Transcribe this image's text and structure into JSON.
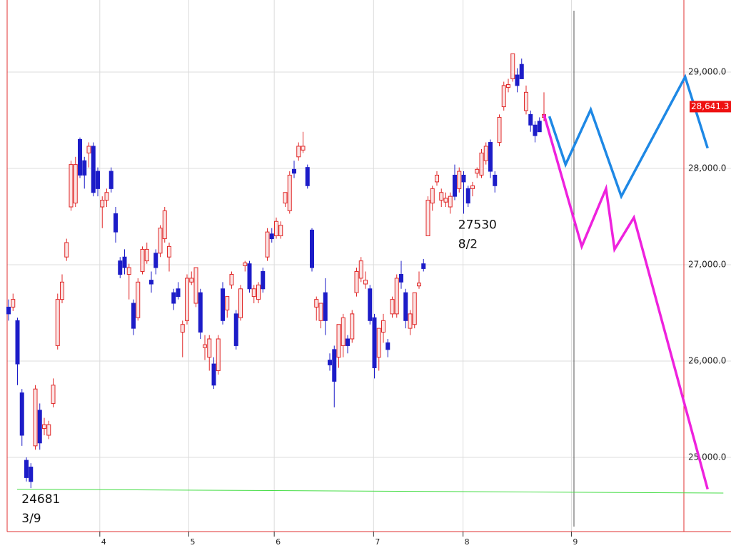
{
  "chart_data": {
    "type": "candlestick",
    "ylim": [
      24230,
      29748
    ],
    "xlim": [
      -0.4,
      162.2
    ],
    "yticks": [
      {
        "value": 25000,
        "label": "25,000.0"
      },
      {
        "value": 26000,
        "label": "26,000.0"
      },
      {
        "value": 27000,
        "label": "27,000.0"
      },
      {
        "value": 28000,
        "label": "28,000.0"
      },
      {
        "value": 29000,
        "label": "29,000.0"
      }
    ],
    "xticks": [
      {
        "value": 21.8,
        "label": "4"
      },
      {
        "value": 41.6,
        "label": "5"
      },
      {
        "value": 60.6,
        "label": "6"
      },
      {
        "value": 82.7,
        "label": "7"
      },
      {
        "value": 102.6,
        "label": "8"
      },
      {
        "value": 126.7,
        "label": "9"
      }
    ],
    "grid": true,
    "up_color": "#e02828",
    "down_color": "#1c1cc8",
    "candles": [
      [
        26560,
        26640,
        26420,
        26490
      ],
      [
        26560,
        26700,
        26520,
        26640
      ],
      [
        26420,
        26450,
        25750,
        25970
      ],
      [
        25670,
        25710,
        25120,
        25230
      ],
      [
        24970,
        25000,
        24750,
        24790
      ],
      [
        24900,
        24940,
        24681,
        24750
      ],
      [
        25120,
        25750,
        25080,
        25710
      ],
      [
        25490,
        25560,
        25080,
        25150
      ],
      [
        25300,
        25410,
        25230,
        25340
      ],
      [
        25230,
        25380,
        25190,
        25340
      ],
      [
        25560,
        25820,
        25520,
        25750
      ],
      [
        26160,
        26700,
        26120,
        26640
      ],
      [
        26640,
        26900,
        26600,
        26820
      ],
      [
        27080,
        27270,
        27040,
        27230
      ],
      [
        27600,
        28080,
        27560,
        28040
      ],
      [
        27640,
        28120,
        27600,
        28040
      ],
      [
        28300,
        28320,
        27900,
        27930
      ],
      [
        28080,
        28120,
        27790,
        27930
      ],
      [
        28160,
        28270,
        28010,
        28230
      ],
      [
        28230,
        28270,
        27710,
        27750
      ],
      [
        27970,
        28010,
        27710,
        27790
      ],
      [
        27600,
        27710,
        27380,
        27670
      ],
      [
        27670,
        27790,
        27600,
        27750
      ],
      [
        27970,
        28010,
        27750,
        27790
      ],
      [
        27530,
        27600,
        27230,
        27340
      ],
      [
        27040,
        27080,
        26860,
        26900
      ],
      [
        27080,
        27160,
        26900,
        26970
      ],
      [
        26900,
        27010,
        26640,
        26970
      ],
      [
        26600,
        26640,
        26270,
        26340
      ],
      [
        26450,
        26860,
        26420,
        26820
      ],
      [
        26930,
        27190,
        26900,
        27160
      ],
      [
        27040,
        27230,
        27010,
        27160
      ],
      [
        26840,
        26930,
        26710,
        26800
      ],
      [
        27120,
        27160,
        26900,
        26970
      ],
      [
        27120,
        27410,
        27080,
        27380
      ],
      [
        27270,
        27600,
        27230,
        27560
      ],
      [
        27080,
        27230,
        26930,
        27190
      ],
      [
        26710,
        26750,
        26530,
        26600
      ],
      [
        26750,
        26820,
        26640,
        26670
      ],
      [
        26300,
        26420,
        26040,
        26380
      ],
      [
        26420,
        26900,
        26380,
        26860
      ],
      [
        26820,
        26930,
        26790,
        26860
      ],
      [
        26600,
        26970,
        26560,
        26970
      ],
      [
        26710,
        26750,
        26230,
        26300
      ],
      [
        26140,
        26270,
        26010,
        26170
      ],
      [
        26040,
        26270,
        25900,
        26230
      ],
      [
        25970,
        26040,
        25710,
        25750
      ],
      [
        25900,
        26270,
        25860,
        26230
      ],
      [
        26750,
        26820,
        26380,
        26420
      ],
      [
        26530,
        26670,
        26450,
        26670
      ],
      [
        26790,
        26930,
        26750,
        26900
      ],
      [
        26490,
        26530,
        26120,
        26160
      ],
      [
        26450,
        26790,
        26420,
        26750
      ],
      [
        26990,
        27040,
        26930,
        27020
      ],
      [
        27010,
        27040,
        26710,
        26750
      ],
      [
        26670,
        26790,
        26600,
        26750
      ],
      [
        26640,
        26820,
        26600,
        26790
      ],
      [
        26930,
        26970,
        26710,
        26750
      ],
      [
        27080,
        27380,
        27040,
        27340
      ],
      [
        27320,
        27380,
        27230,
        27270
      ],
      [
        27300,
        27490,
        27270,
        27450
      ],
      [
        27300,
        27450,
        27270,
        27410
      ],
      [
        27640,
        27750,
        27600,
        27750
      ],
      [
        27560,
        27970,
        27530,
        27930
      ],
      [
        27990,
        28080,
        27900,
        27950
      ],
      [
        28120,
        28270,
        28080,
        28230
      ],
      [
        28190,
        28380,
        28160,
        28230
      ],
      [
        28010,
        28040,
        27790,
        27820
      ],
      [
        27360,
        27380,
        26930,
        26970
      ],
      [
        26560,
        26670,
        26420,
        26640
      ],
      [
        26420,
        26600,
        26340,
        26600
      ],
      [
        26710,
        26860,
        26270,
        26420
      ],
      [
        26010,
        26080,
        25900,
        25960
      ],
      [
        26120,
        26160,
        25520,
        25790
      ],
      [
        26040,
        26380,
        25930,
        26380
      ],
      [
        26160,
        26490,
        26040,
        26450
      ],
      [
        26230,
        26270,
        26080,
        26160
      ],
      [
        26230,
        26530,
        26190,
        26490
      ],
      [
        26710,
        26970,
        26670,
        26930
      ],
      [
        26860,
        27080,
        26820,
        27040
      ],
      [
        26800,
        26930,
        26750,
        26840
      ],
      [
        26750,
        26790,
        26380,
        26420
      ],
      [
        26450,
        26490,
        25820,
        25930
      ],
      [
        26040,
        26340,
        25900,
        26340
      ],
      [
        26300,
        26490,
        26190,
        26420
      ],
      [
        26190,
        26230,
        26040,
        26120
      ],
      [
        26490,
        26670,
        26450,
        26640
      ],
      [
        26490,
        26900,
        26450,
        26860
      ],
      [
        26900,
        27040,
        26750,
        26820
      ],
      [
        26710,
        26750,
        26340,
        26420
      ],
      [
        26340,
        26530,
        26270,
        26490
      ],
      [
        26380,
        26710,
        26340,
        26710
      ],
      [
        26780,
        26930,
        26750,
        26810
      ],
      [
        27010,
        27060,
        26930,
        26960
      ],
      [
        27300,
        27710,
        27300,
        27670
      ],
      [
        27640,
        27820,
        27560,
        27790
      ],
      [
        27860,
        27970,
        27820,
        27930
      ],
      [
        27670,
        27790,
        27600,
        27750
      ],
      [
        27650,
        27750,
        27600,
        27690
      ],
      [
        27600,
        27750,
        27530,
        27710
      ],
      [
        27930,
        28040,
        27670,
        27710
      ],
      [
        27790,
        28010,
        27750,
        27970
      ],
      [
        27930,
        27970,
        27530,
        27860
      ],
      [
        27790,
        27820,
        27600,
        27640
      ],
      [
        27790,
        27860,
        27710,
        27820
      ],
      [
        27950,
        28010,
        27900,
        27990
      ],
      [
        27930,
        28200,
        27900,
        28160
      ],
      [
        28080,
        28270,
        28040,
        28230
      ],
      [
        28270,
        28300,
        27900,
        27970
      ],
      [
        27930,
        27970,
        27750,
        27820
      ],
      [
        28270,
        28560,
        28230,
        28530
      ],
      [
        28640,
        28900,
        28600,
        28860
      ],
      [
        28840,
        28930,
        28790,
        28870
      ],
      [
        28930,
        29190,
        28900,
        29190
      ],
      [
        28970,
        29040,
        28790,
        28860
      ],
      [
        29080,
        29140,
        28930,
        28930
      ],
      [
        28600,
        28860,
        28560,
        28790
      ],
      [
        28560,
        28600,
        28380,
        28450
      ],
      [
        28450,
        28490,
        28270,
        28340
      ],
      [
        28490,
        28530,
        28380,
        28380
      ],
      [
        28530,
        28790,
        28490,
        28560
      ]
    ],
    "series": [
      {
        "color": "#1e88e5",
        "x": [
          121.8,
          125.4,
          131.0,
          137.8,
          152.0,
          157.0
        ],
        "values": [
          28540,
          28040,
          28610,
          27710,
          28950,
          28210
        ]
      },
      {
        "color": "#ee22dd",
        "x": [
          120.6,
          129.0,
          134.4,
          136.3,
          140.6,
          157.0
        ],
        "values": [
          28560,
          27190,
          27790,
          27160,
          27490,
          24670
        ]
      },
      {
        "color": "#44dd44",
        "x": [
          3.4,
          160.5
        ],
        "values": [
          24670,
          24630
        ]
      }
    ],
    "last_price": {
      "value": 28641.3,
      "label": "28,641.3"
    },
    "annotations": [
      {
        "x": 2.9,
        "value": 24681,
        "date": "3/9"
      },
      {
        "x": 100.0,
        "value": 27530,
        "date": "8/2"
      }
    ]
  }
}
